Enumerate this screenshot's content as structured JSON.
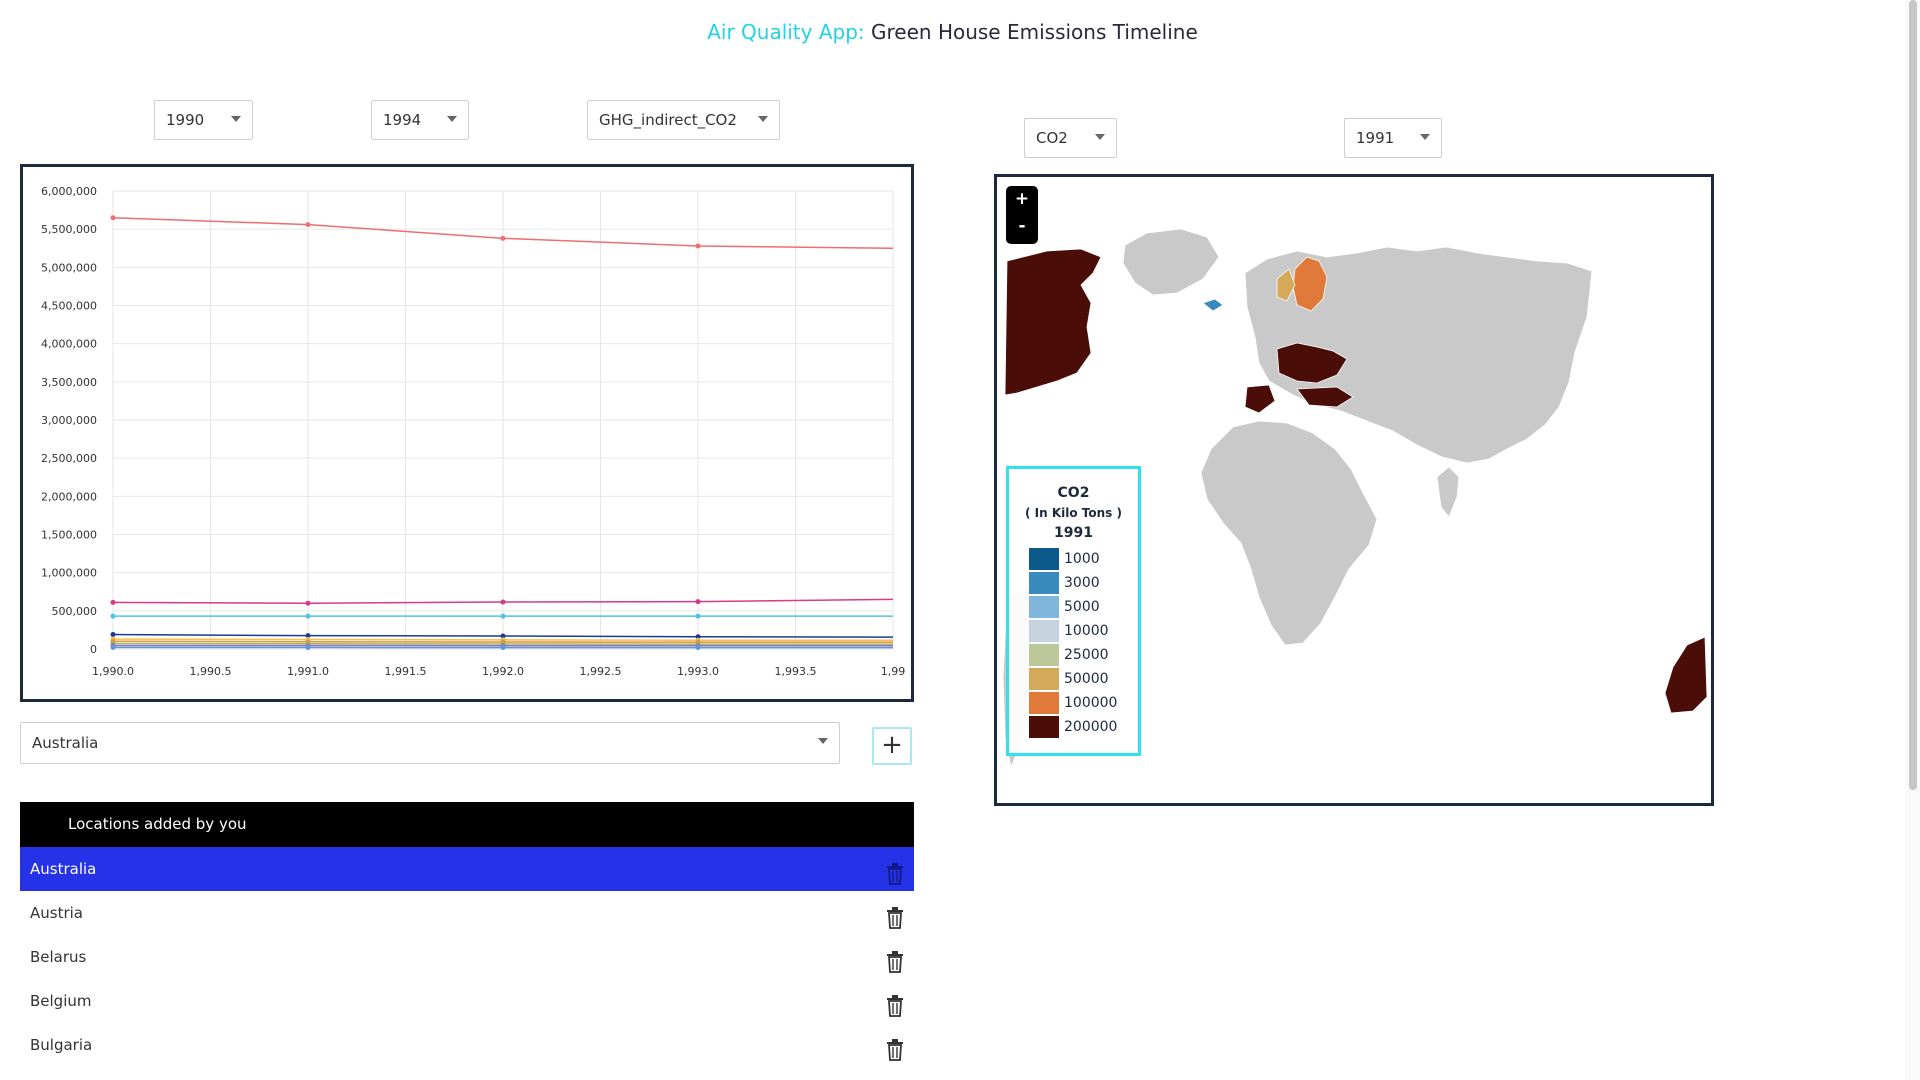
{
  "header": {
    "app_name": "Air Quality App:",
    "subtitle": " Green House Emissions Timeline"
  },
  "controls": {
    "start_year": "1990",
    "end_year": "1994",
    "indicator": "GHG_indirect_CO2",
    "map_gas": "CO2",
    "map_year": "1991",
    "location_select": "Australia",
    "add_label": "+"
  },
  "chart_data": {
    "type": "line",
    "x": [
      1990.0,
      1991.0,
      1992.0,
      1993.0,
      1994.0
    ],
    "xlim": [
      1990.0,
      1994.0
    ],
    "ylim": [
      0,
      6000000
    ],
    "x_ticks": [
      "1,990.0",
      "1,990.5",
      "1,991.0",
      "1,991.5",
      "1,992.0",
      "1,992.5",
      "1,993.0",
      "1,993.5",
      "1,99"
    ],
    "y_ticks": [
      "0",
      "500,000",
      "1,000,000",
      "1,500,000",
      "2,000,000",
      "2,500,000",
      "3,000,000",
      "3,500,000",
      "4,000,000",
      "4,500,000",
      "5,000,000",
      "5,500,000",
      "6,000,000"
    ],
    "grid": true,
    "series": [
      {
        "color": "#f26d6d",
        "values": [
          5650000,
          5560000,
          5380000,
          5280000,
          5250000
        ]
      },
      {
        "color": "#d63a8a",
        "values": [
          610000,
          600000,
          615000,
          620000,
          650000
        ]
      },
      {
        "color": "#4fc3e0",
        "values": [
          430000,
          430000,
          430000,
          430000,
          430000
        ]
      },
      {
        "color": "#1a3a9a",
        "values": [
          190000,
          175000,
          170000,
          160000,
          155000
        ]
      },
      {
        "color": "#f2c14e",
        "values": [
          130000,
          125000,
          120000,
          115000,
          115000
        ]
      },
      {
        "color": "#f08a3c",
        "values": [
          100000,
          95000,
          92000,
          90000,
          90000
        ]
      },
      {
        "color": "#8bc34a",
        "values": [
          70000,
          68000,
          66000,
          64000,
          64000
        ]
      },
      {
        "color": "#9c6bd6",
        "values": [
          45000,
          44000,
          43000,
          42000,
          42000
        ]
      },
      {
        "color": "#5b9bd5",
        "values": [
          20000,
          19000,
          18000,
          18000,
          18000
        ]
      }
    ]
  },
  "map": {
    "zoom_in": "+",
    "zoom_out": "-",
    "legend": {
      "title": "CO2",
      "subtitle": "( In Kilo Tons )",
      "year": "1991",
      "items": [
        {
          "label": "1000",
          "color": "#0b5a8a"
        },
        {
          "label": "3000",
          "color": "#3a8bbd"
        },
        {
          "label": "5000",
          "color": "#7fb6da"
        },
        {
          "label": "10000",
          "color": "#c5d3de"
        },
        {
          "label": "25000",
          "color": "#bcc79a"
        },
        {
          "label": "50000",
          "color": "#d4a95a"
        },
        {
          "label": "100000",
          "color": "#e07a3a"
        },
        {
          "label": "200000",
          "color": "#4a0d08"
        }
      ]
    }
  },
  "locations": {
    "header": "Locations added by you",
    "items": [
      "Australia",
      "Austria",
      "Belarus",
      "Belgium",
      "Bulgaria"
    ],
    "selected": 0
  }
}
